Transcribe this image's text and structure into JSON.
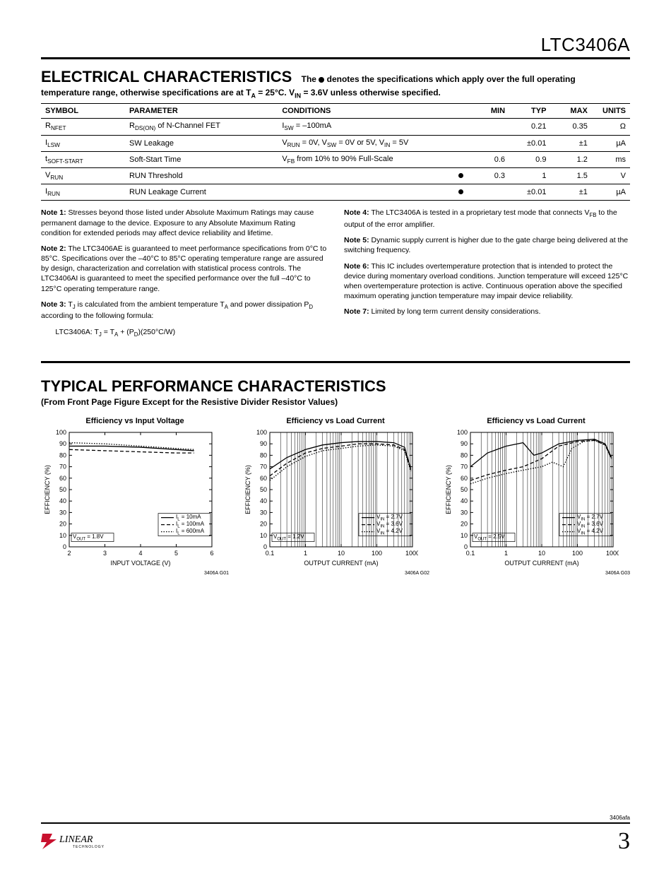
{
  "header": {
    "partnum": "LTC3406A"
  },
  "section1": {
    "title": "ELECTRICAL CHARACTERISTICS",
    "sub_prefix": "The",
    "sub_suffix": "denotes the specifications which apply over the full operating",
    "sub_line2": "temperature range, otherwise specifications are at T<sub>A</sub> = 25°C. V<sub>IN</sub> = 3.6V unless otherwise specified."
  },
  "table": {
    "head": [
      "SYMBOL",
      "PARAMETER",
      "CONDITIONS",
      "",
      "MIN",
      "TYP",
      "MAX",
      "UNITS"
    ],
    "rows": [
      {
        "sym": "R<sub>NFET</sub>",
        "param": "R<sub>DS(ON)</sub> of N-Channel FET",
        "cond": "I<sub>SW</sub> = –100mA",
        "dot": false,
        "min": "",
        "typ": "0.21",
        "max": "0.35",
        "unit": "Ω"
      },
      {
        "sym": "I<sub>LSW</sub>",
        "param": "SW Leakage",
        "cond": "V<sub>RUN</sub> = 0V, V<sub>SW</sub> = 0V or 5V, V<sub>IN</sub> = 5V",
        "dot": false,
        "min": "",
        "typ": "±0.01",
        "max": "±1",
        "unit": "µA"
      },
      {
        "sym": "t<sub>SOFT-START</sub>",
        "param": "Soft-Start Time",
        "cond": "V<sub>FB</sub> from 10% to 90% Full-Scale",
        "dot": false,
        "min": "0.6",
        "typ": "0.9",
        "max": "1.2",
        "unit": "ms"
      },
      {
        "sym": "V<sub>RUN</sub>",
        "param": "RUN Threshold",
        "cond": "",
        "dot": true,
        "min": "0.3",
        "typ": "1",
        "max": "1.5",
        "unit": "V"
      },
      {
        "sym": "I<sub>RUN</sub>",
        "param": "RUN Leakage Current",
        "cond": "",
        "dot": true,
        "min": "",
        "typ": "±0.01",
        "max": "±1",
        "unit": "µA"
      }
    ]
  },
  "notes": {
    "left": [
      "<b>Note 1:</b> Stresses beyond those listed under Absolute Maximum Ratings may cause permanent damage to the device. Exposure to any Absolute Maximum Rating condition for extended periods may affect device reliability and lifetime.",
      "<b>Note 2:</b> The LTC3406AE is guaranteed to meet performance specifications from 0°C to 85°C. Specifications over the –40°C to 85°C operating temperature range are assured by design, characterization and correlation with statistical process controls. The LTC3406AI is guaranteed to meet the specified performance over the full –40°C to 125°C operating temperature range.",
      "<b>Note 3:</b> T<sub>J</sub> is calculated from the ambient temperature T<sub>A</sub> and power dissipation P<sub>D</sub> according to the following formula:",
      "&nbsp;&nbsp;&nbsp;&nbsp;&nbsp;&nbsp;&nbsp;LTC3406A: T<sub>J</sub> = T<sub>A</sub> + (P<sub>D</sub>)(250°C/W)"
    ],
    "right": [
      "<b>Note 4:</b> The LTC3406A is tested in a proprietary test mode that connects V<sub>FB</sub> to the output of the error amplifier.",
      "<b>Note 5:</b> Dynamic supply current is higher due to the gate charge being delivered at the switching frequency.",
      "<b>Note 6:</b> This IC includes overtemperature protection that is intended to protect the device during momentary overload conditions. Junction temperature will exceed 125°C when overtemperature protection is active. Continuous operation above the specified maximum operating junction temperature may impair device reliability.",
      "<b>Note 7:</b> Limited by long term current density considerations."
    ]
  },
  "section2": {
    "title": "TYPICAL PERFORMANCE CHARACTERISTICS",
    "sub": "(From Front Page Figure Except for the Resistive Divider Resistor Values)"
  },
  "charts": [
    {
      "title": "Efficiency vs Input Voltage",
      "id": "3406A G01",
      "xlabel": "INPUT VOLTAGE (V)",
      "ylabel": "EFFICIENCY (%)",
      "xscale": "linear",
      "xmin": 2,
      "xmax": 6,
      "xticks": [
        2,
        3,
        4,
        5,
        6
      ],
      "ymin": 0,
      "ymax": 100,
      "yticks": [
        0,
        10,
        20,
        30,
        40,
        50,
        60,
        70,
        80,
        90,
        100
      ],
      "vout": "V<sub>OUT</sub> = 1.8V",
      "legend": [
        [
          "solid",
          "I<sub>L</sub> = 10mA"
        ],
        [
          "dash",
          "I<sub>L</sub> = 100mA"
        ],
        [
          "dot",
          "I<sub>L</sub> = 600mA"
        ]
      ],
      "legend_pos": "br",
      "series": {
        "solid": [
          [
            2,
            88
          ],
          [
            3,
            88
          ],
          [
            4,
            87
          ],
          [
            5,
            85
          ],
          [
            5.5,
            84
          ]
        ],
        "dash": [
          [
            2,
            85
          ],
          [
            3,
            84
          ],
          [
            4,
            83
          ],
          [
            5,
            82
          ],
          [
            5.5,
            82
          ]
        ],
        "dot": [
          [
            2,
            91
          ],
          [
            3,
            90
          ],
          [
            4,
            88
          ],
          [
            5,
            86
          ],
          [
            5.5,
            85
          ]
        ]
      }
    },
    {
      "title": "Efficiency vs Load Current",
      "id": "3406A G02",
      "xlabel": "OUTPUT CURRENT (mA)",
      "ylabel": "EFFICIENCY (%)",
      "xscale": "log",
      "xmin": 0.1,
      "xmax": 1000,
      "xticks": [
        0.1,
        1,
        10,
        100,
        1000
      ],
      "ymin": 0,
      "ymax": 100,
      "yticks": [
        0,
        10,
        20,
        30,
        40,
        50,
        60,
        70,
        80,
        90,
        100
      ],
      "vout": "V<sub>OUT</sub> = 1.2V",
      "legend": [
        [
          "solid",
          "V<sub>IN</sub> = 2.7V"
        ],
        [
          "dash",
          "V<sub>IN</sub> = 3.6V"
        ],
        [
          "dot",
          "V<sub>IN</sub> = 4.2V"
        ]
      ],
      "legend_pos": "br",
      "series": {
        "solid": [
          [
            0.1,
            68
          ],
          [
            0.3,
            78
          ],
          [
            1,
            85
          ],
          [
            3,
            89
          ],
          [
            10,
            91
          ],
          [
            30,
            92
          ],
          [
            100,
            92
          ],
          [
            300,
            91
          ],
          [
            600,
            87
          ],
          [
            900,
            68
          ]
        ],
        "dash": [
          [
            0.1,
            62
          ],
          [
            0.3,
            73
          ],
          [
            1,
            82
          ],
          [
            3,
            86
          ],
          [
            10,
            88
          ],
          [
            30,
            90
          ],
          [
            100,
            90
          ],
          [
            300,
            89
          ],
          [
            600,
            85
          ],
          [
            900,
            67
          ]
        ],
        "dot": [
          [
            0.1,
            58
          ],
          [
            0.3,
            70
          ],
          [
            1,
            79
          ],
          [
            3,
            84
          ],
          [
            10,
            86
          ],
          [
            30,
            88
          ],
          [
            100,
            89
          ],
          [
            300,
            88
          ],
          [
            600,
            84
          ],
          [
            900,
            66
          ]
        ]
      }
    },
    {
      "title": "Efficiency vs Load Current",
      "id": "3406A G03",
      "xlabel": "OUTPUT CURRENT (mA)",
      "ylabel": "EFFICIENCY (%)",
      "xscale": "log",
      "xmin": 0.1,
      "xmax": 1000,
      "xticks": [
        0.1,
        1,
        10,
        100,
        1000
      ],
      "ymin": 0,
      "ymax": 100,
      "yticks": [
        0,
        10,
        20,
        30,
        40,
        50,
        60,
        70,
        80,
        90,
        100
      ],
      "vout": "V<sub>OUT</sub> = 2.5V",
      "legend": [
        [
          "solid",
          "V<sub>IN</sub> = 2.7V"
        ],
        [
          "dash",
          "V<sub>IN</sub> = 3.6V"
        ],
        [
          "dot",
          "V<sub>IN</sub> = 4.2V"
        ]
      ],
      "legend_pos": "br",
      "series": {
        "solid": [
          [
            0.1,
            70
          ],
          [
            0.3,
            82
          ],
          [
            1,
            88
          ],
          [
            3,
            91
          ],
          [
            6,
            80
          ],
          [
            10,
            82
          ],
          [
            30,
            90
          ],
          [
            100,
            93
          ],
          [
            300,
            94
          ],
          [
            600,
            90
          ],
          [
            900,
            78
          ]
        ],
        "dash": [
          [
            0.1,
            58
          ],
          [
            0.3,
            63
          ],
          [
            1,
            67
          ],
          [
            3,
            70
          ],
          [
            10,
            77
          ],
          [
            30,
            88
          ],
          [
            100,
            92
          ],
          [
            300,
            93
          ],
          [
            600,
            89
          ],
          [
            900,
            77
          ]
        ],
        "dot": [
          [
            0.1,
            55
          ],
          [
            0.3,
            60
          ],
          [
            1,
            64
          ],
          [
            3,
            67
          ],
          [
            10,
            70
          ],
          [
            20,
            74
          ],
          [
            40,
            70
          ],
          [
            70,
            86
          ],
          [
            150,
            92
          ],
          [
            300,
            93
          ],
          [
            600,
            89
          ],
          [
            900,
            77
          ]
        ]
      }
    }
  ],
  "footer": {
    "small": "3406afa",
    "pagenum": "3",
    "logo": "LINEAR",
    "logosub": "TECHNOLOGY"
  }
}
